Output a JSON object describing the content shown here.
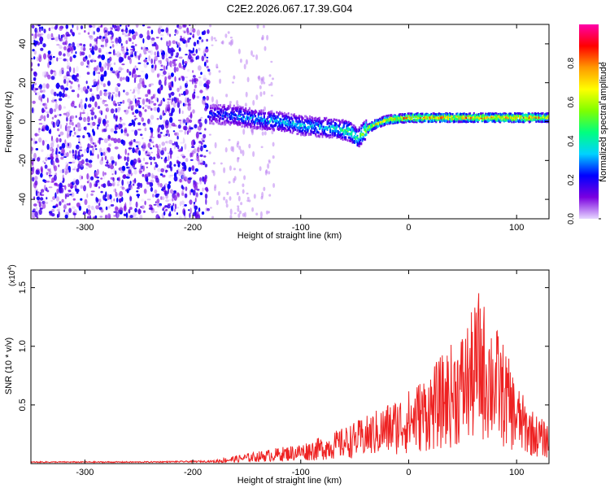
{
  "title": "C2E2.2026.067.17.39.G04",
  "chart_data": [
    {
      "type": "heatmap",
      "title": "C2E2.2026.067.17.39.G04",
      "xlabel": "Height of straight line (km)",
      "ylabel": "Frequency (Hz)",
      "xlim": [
        -350,
        130
      ],
      "ylim": [
        -50,
        50
      ],
      "x_ticks": [
        -300,
        -200,
        -100,
        0,
        100
      ],
      "x_tick_labels": [
        "-300",
        "-200",
        "-100",
        "0",
        "100"
      ],
      "y_ticks": [
        -40,
        -20,
        0,
        20,
        40
      ],
      "y_tick_labels": [
        "-40",
        "-20",
        "0",
        "20",
        "40"
      ],
      "colorbar": {
        "label": "Normalized spectral amplitude",
        "range": [
          0,
          1
        ],
        "ticks": [
          0.0,
          0.2,
          0.4,
          0.6,
          0.8
        ],
        "tick_labels": [
          "0.0",
          "0.2",
          "0.4",
          "0.6",
          "0.8"
        ],
        "colormap": [
          "#e6d7ff",
          "#7a00e0",
          "#0000ff",
          "#00d2ff",
          "#00ff7f",
          "#7fff00",
          "#ffff00",
          "#ff9900",
          "#ff0000",
          "#ff00aa"
        ]
      },
      "signal_track": {
        "x": [
          -185,
          -160,
          -140,
          -120,
          -100,
          -80,
          -65,
          -55,
          -48,
          -40,
          -30,
          -20,
          0,
          50,
          100,
          130
        ],
        "frequency": [
          4,
          3,
          1,
          0,
          -2,
          -3,
          -4,
          -5,
          -9,
          -4,
          -1,
          1,
          2,
          2,
          2,
          2
        ],
        "amplitude": [
          0.25,
          0.35,
          0.35,
          0.4,
          0.4,
          0.4,
          0.45,
          0.55,
          0.5,
          0.7,
          0.75,
          0.8,
          0.85,
          0.9,
          0.9,
          0.85
        ]
      },
      "noise_region": {
        "x_from": -350,
        "x_to": -185,
        "amplitude": 0.2
      }
    },
    {
      "type": "line",
      "xlabel": "Height of straight line (km)",
      "ylabel": "SNR (10 * v/v)",
      "y_multiplier": "(x10",
      "y_multiplier_exponent": "4",
      "y_multiplier_close": ")",
      "xlim": [
        -350,
        130
      ],
      "ylim": [
        0,
        1.65
      ],
      "x_ticks": [
        -300,
        -200,
        -100,
        0,
        100
      ],
      "x_tick_labels": [
        "-300",
        "-200",
        "-100",
        "0",
        "100"
      ],
      "y_ticks": [
        0.5,
        1.0,
        1.5
      ],
      "y_tick_labels": [
        "0.5",
        "1.0",
        "1.5"
      ],
      "color": "#ee2222",
      "envelope": {
        "x": [
          -350,
          -250,
          -180,
          -160,
          -140,
          -120,
          -100,
          -80,
          -60,
          -40,
          -20,
          0,
          20,
          40,
          50,
          60,
          65,
          70,
          80,
          90,
          100,
          110,
          120,
          130
        ],
        "y": [
          0.02,
          0.02,
          0.03,
          0.06,
          0.09,
          0.12,
          0.15,
          0.2,
          0.27,
          0.35,
          0.45,
          0.55,
          0.7,
          0.9,
          1.0,
          1.15,
          1.3,
          1.2,
          1.05,
          0.85,
          0.6,
          0.45,
          0.35,
          0.3
        ]
      }
    }
  ]
}
